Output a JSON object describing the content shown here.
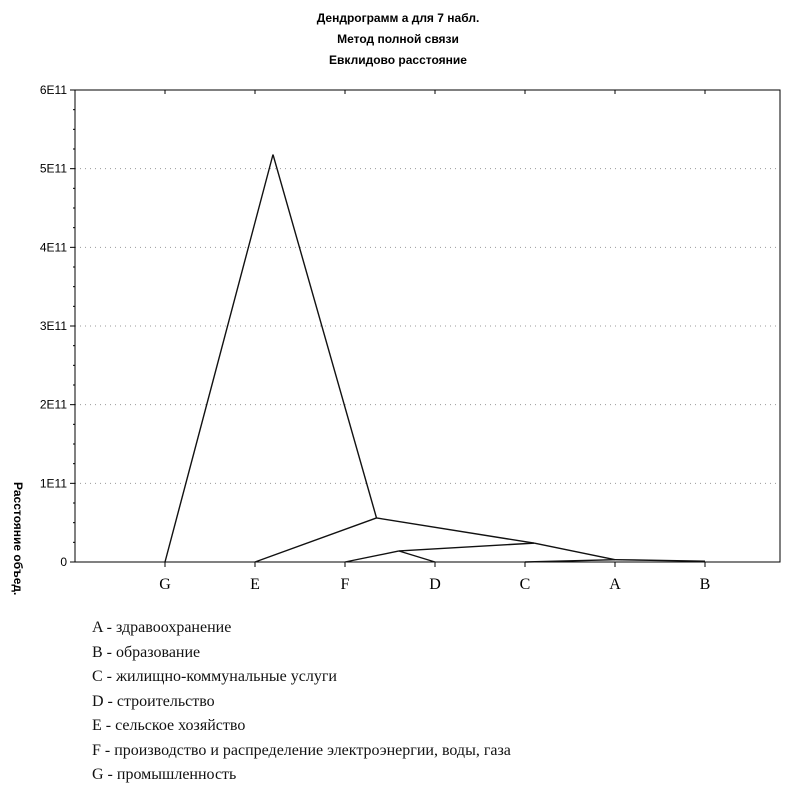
{
  "chart_data": {
    "type": "line",
    "title": [
      "Дендрограмм а для  7 набл.",
      "Метод полной связи",
      "Евклидово расстояние"
    ],
    "ylabel": "Расстояние объед.",
    "ylim": [
      0,
      600000000000
    ],
    "yticks": [
      {
        "value": 0,
        "label": "0"
      },
      {
        "value": 100000000000,
        "label": "1E11"
      },
      {
        "value": 200000000000,
        "label": "2E11"
      },
      {
        "value": 300000000000,
        "label": "3E11"
      },
      {
        "value": 400000000000,
        "label": "4E11"
      },
      {
        "value": 500000000000,
        "label": "5E11"
      },
      {
        "value": 600000000000,
        "label": "6E11"
      }
    ],
    "categories": [
      "G",
      "E",
      "F",
      "D",
      "C",
      "A",
      "B"
    ],
    "grid": true,
    "merges": [
      {
        "pair": [
          "A",
          "B"
        ],
        "height": 1000000000
      },
      {
        "pair": [
          "C",
          "AB"
        ],
        "height": 3000000000
      },
      {
        "pair": [
          "D",
          "CAB"
        ],
        "height": 24000000000
      },
      {
        "pair": [
          "F",
          "DCAB"
        ],
        "height": 14000000000
      },
      {
        "pair": [
          "E",
          "FDCAB"
        ],
        "height": 56000000000
      },
      {
        "pair": [
          "G",
          "EFDCAB"
        ],
        "height": 518000000000
      }
    ],
    "segments": [
      {
        "from": [
          "G",
          0
        ],
        "to": [
          1.2,
          518000000000
        ]
      },
      {
        "from": [
          1.2,
          518000000000
        ],
        "to": [
          2.35,
          56000000000
        ]
      },
      {
        "from": [
          "E",
          0
        ],
        "to": [
          2.35,
          56000000000
        ]
      },
      {
        "from": [
          2.35,
          56000000000
        ],
        "to": [
          4.1,
          24000000000
        ]
      },
      {
        "from": [
          4.1,
          24000000000
        ],
        "to": [
          "A",
          3000000000
        ]
      },
      {
        "from": [
          4.1,
          24000000000
        ],
        "to": [
          2.6,
          14000000000
        ]
      },
      {
        "from": [
          "F",
          0
        ],
        "to": [
          2.6,
          14000000000
        ]
      },
      {
        "from": [
          2.6,
          14000000000
        ],
        "to": [
          "D",
          0
        ]
      },
      {
        "from": [
          "C",
          0
        ],
        "to": [
          "A",
          3000000000
        ]
      },
      {
        "from": [
          "A",
          3000000000
        ],
        "to": [
          "B",
          1000000000
        ]
      }
    ]
  },
  "legend": [
    "A - здравоохранение",
    "B - образование",
    "C - жилищно-коммунальные услуги",
    "D - строительство",
    "E - сельское хозяйство",
    "F - производство и распределение электроэнергии, воды, газа",
    "G - промышленность"
  ]
}
